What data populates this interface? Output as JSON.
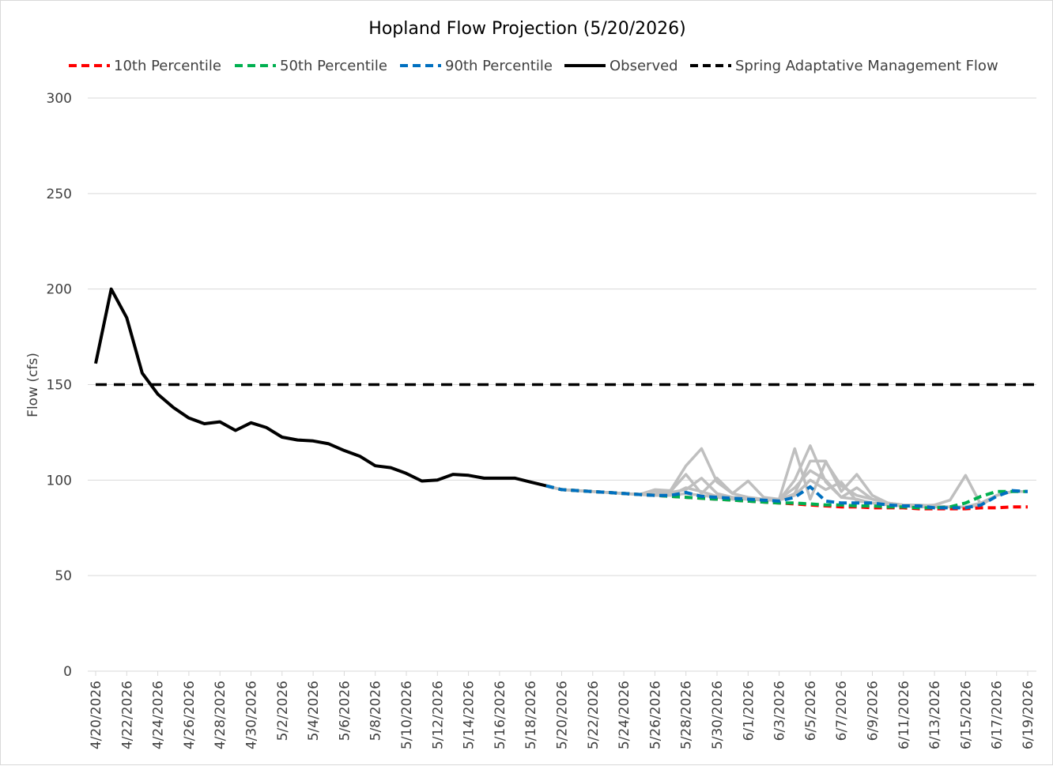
{
  "chart_data": {
    "type": "line",
    "title": "Hopland Flow Projection (5/20/2026)",
    "xlabel": "",
    "ylabel": "Flow (cfs)",
    "ylim": [
      0,
      300
    ],
    "yticks": [
      0,
      50,
      100,
      150,
      200,
      250,
      300
    ],
    "grid": true,
    "legend_position": "top",
    "x_start": "4/20/2026",
    "x_end": "6/19/2026",
    "x_tick_labels": [
      "4/20/2026",
      "4/22/2026",
      "4/24/2026",
      "4/26/2026",
      "4/28/2026",
      "4/30/2026",
      "5/2/2026",
      "5/4/2026",
      "5/6/2026",
      "5/8/2026",
      "5/10/2026",
      "5/12/2026",
      "5/14/2026",
      "5/16/2026",
      "5/18/2026",
      "5/20/2026",
      "5/22/2026",
      "5/24/2026",
      "5/26/2026",
      "5/28/2026",
      "5/30/2026",
      "6/1/2026",
      "6/3/2026",
      "6/5/2026",
      "6/7/2026",
      "6/9/2026",
      "6/11/2026",
      "6/13/2026",
      "6/15/2026",
      "6/17/2026",
      "6/19/2026"
    ],
    "observed": {
      "name": "Observed",
      "color": "#000000",
      "dates": [
        "4/20/2026",
        "4/21/2026",
        "4/22/2026",
        "4/23/2026",
        "4/24/2026",
        "4/25/2026",
        "4/26/2026",
        "4/27/2026",
        "4/28/2026",
        "4/29/2026",
        "4/30/2026",
        "5/1/2026",
        "5/2/2026",
        "5/3/2026",
        "5/4/2026",
        "5/5/2026",
        "5/6/2026",
        "5/7/2026",
        "5/8/2026",
        "5/9/2026",
        "5/10/2026",
        "5/11/2026",
        "5/12/2026",
        "5/13/2026",
        "5/14/2026",
        "5/15/2026",
        "5/16/2026",
        "5/17/2026",
        "5/18/2026",
        "5/19/2026"
      ],
      "values": [
        161,
        200,
        185,
        156,
        145,
        138,
        132.5,
        129.5,
        130.5,
        126,
        130,
        127.5,
        122.5,
        121,
        120.5,
        119,
        115.5,
        112.5,
        107.5,
        106.5,
        103.5,
        99.5,
        100,
        103,
        102.5,
        101,
        101,
        101,
        99,
        97
      ]
    },
    "threshold": {
      "name": "Spring Adaptative Management Flow",
      "value": 150,
      "color": "#000000"
    },
    "projection_dates": [
      "5/19/2026",
      "5/20/2026",
      "5/21/2026",
      "5/22/2026",
      "5/23/2026",
      "5/24/2026",
      "5/25/2026",
      "5/26/2026",
      "5/27/2026",
      "5/28/2026",
      "5/29/2026",
      "5/30/2026",
      "5/31/2026",
      "6/1/2026",
      "6/2/2026",
      "6/3/2026",
      "6/4/2026",
      "6/5/2026",
      "6/6/2026",
      "6/7/2026",
      "6/8/2026",
      "6/9/2026",
      "6/10/2026",
      "6/11/2026",
      "6/12/2026",
      "6/13/2026",
      "6/14/2026",
      "6/15/2026",
      "6/16/2026",
      "6/17/2026",
      "6/18/2026",
      "6/19/2026"
    ],
    "series": [
      {
        "name": "10th Percentile",
        "color": "#ff0000",
        "values": [
          97,
          95,
          94.5,
          94,
          93.5,
          93,
          92.5,
          92,
          91.5,
          91,
          90.5,
          90,
          89.5,
          89,
          88.5,
          88,
          87.5,
          87,
          86.5,
          86,
          86,
          85.5,
          85.5,
          85.5,
          85,
          85,
          85,
          85,
          85.5,
          85.5,
          86,
          86
        ]
      },
      {
        "name": "50th Percentile",
        "color": "#00b050",
        "values": [
          97,
          95,
          94.5,
          94,
          93.5,
          93,
          92.5,
          92,
          91.5,
          91,
          90.5,
          90,
          89.5,
          89,
          88.5,
          88,
          88,
          87.5,
          87,
          87,
          86.5,
          86.5,
          86,
          86,
          85.5,
          85.5,
          86,
          88,
          91.5,
          94,
          94,
          94
        ]
      },
      {
        "name": "90th Percentile",
        "color": "#0070c0",
        "values": [
          97,
          95,
          94.5,
          94,
          93.5,
          93,
          92.5,
          92,
          92,
          93.5,
          91.5,
          91,
          90.5,
          90,
          89.5,
          89,
          91,
          96.5,
          89,
          88,
          88,
          88,
          87,
          86.5,
          86.5,
          85.5,
          85.5,
          85.5,
          87,
          91.5,
          94.5,
          94
        ]
      }
    ],
    "ensemble_color": "#bfbfbf",
    "ensemble": [
      [
        97,
        95,
        94.5,
        94,
        93.5,
        93,
        92.5,
        95,
        94.5,
        107.5,
        116.5,
        99,
        93,
        91,
        90,
        89.5,
        100,
        118,
        99,
        91,
        90,
        88,
        87,
        86.5,
        86,
        86,
        86,
        86,
        88,
        92,
        94,
        94
      ],
      [
        97,
        95,
        94.5,
        94,
        93.5,
        93,
        92.5,
        94,
        94,
        103,
        93,
        101,
        93,
        99.5,
        91,
        90,
        116.5,
        90,
        109.5,
        97,
        92,
        90,
        88,
        87,
        86.5,
        86,
        86,
        86,
        88,
        92,
        94,
        94
      ],
      [
        97,
        95,
        94.5,
        94,
        93.5,
        93,
        92.5,
        92.5,
        93.5,
        95,
        101,
        93,
        91,
        90.5,
        90,
        89.5,
        93,
        110,
        110,
        94,
        103,
        92,
        88,
        87,
        86.5,
        87,
        89.5,
        102.5,
        87,
        92,
        94,
        94
      ],
      [
        97,
        95,
        94.5,
        94,
        93.5,
        93,
        92.5,
        92,
        92,
        93,
        92,
        91,
        90,
        90,
        89.5,
        90,
        96,
        105,
        100,
        91,
        96,
        90,
        88,
        87,
        87,
        86.5,
        86,
        86,
        87,
        92,
        94,
        94
      ],
      [
        97,
        95,
        94.5,
        94,
        93.5,
        93,
        92.5,
        92,
        92,
        96,
        94,
        91.5,
        91,
        90,
        89.5,
        89.5,
        92,
        100,
        95,
        99,
        89,
        88,
        87.5,
        87,
        86.5,
        86,
        86,
        86,
        87,
        92,
        94,
        94
      ]
    ]
  }
}
